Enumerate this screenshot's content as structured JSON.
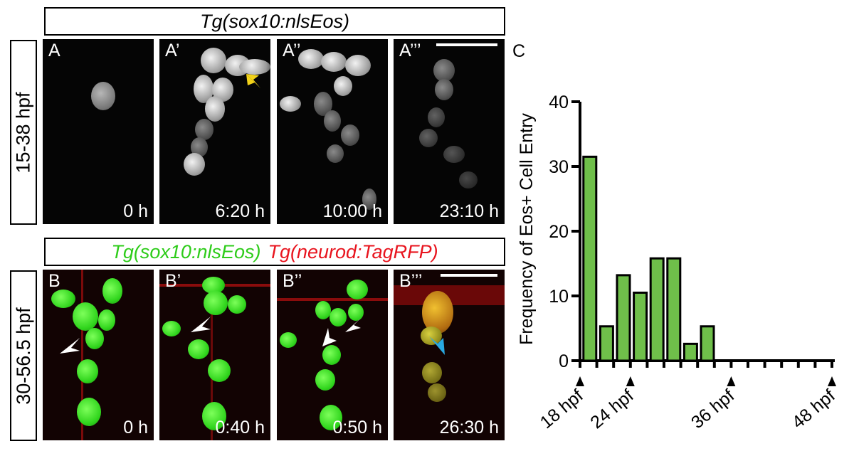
{
  "row1": {
    "title": "Tg(sox10:nlsEos)",
    "side_label": "15-38 hpf",
    "panels": [
      {
        "label": "A",
        "time": "0 h"
      },
      {
        "label": "A’",
        "time": "6:20 h"
      },
      {
        "label": "A’’",
        "time": "10:00 h"
      },
      {
        "label": "A’’’",
        "time": "23:10 h"
      }
    ]
  },
  "row2": {
    "title_green": "Tg(sox10:nlsEos)",
    "title_red": "Tg(neurod:TagRFP)",
    "side_label": "30-56.5 hpf",
    "panels": [
      {
        "label": "B",
        "time": "0 h"
      },
      {
        "label": "B’",
        "time": "0:40 h"
      },
      {
        "label": "B’’",
        "time": "0:50 h"
      },
      {
        "label": "B’’’",
        "time": "26:30 h"
      }
    ]
  },
  "colors": {
    "green_label": "#2ecc1a",
    "red_label": "#e8141e",
    "bar_fill": "#6fbf4a",
    "arrow_yellow": "#f2d21a",
    "arrow_blue": "#29a8e0",
    "arrow_white": "#ffffff"
  },
  "chart_data": {
    "panel_label": "C",
    "type": "bar",
    "ylabel": "Frequency of Eos+ Cell Entry",
    "ylim": [
      0,
      40
    ],
    "yticks": [
      0,
      10,
      20,
      30,
      40
    ],
    "x_unit_hours_per_bin": 2,
    "x_start_hpf": 18,
    "values": [
      31.5,
      5.3,
      13.2,
      10.5,
      15.8,
      15.8,
      2.6,
      5.3,
      0,
      0,
      0,
      0,
      0,
      0,
      0
    ],
    "tick_labels": [
      {
        "bin": 0,
        "text": "18 hpf"
      },
      {
        "bin": 3,
        "text": "24 hpf"
      },
      {
        "bin": 9,
        "text": "36 hpf"
      },
      {
        "bin": 15,
        "text": "48 hpf"
      }
    ],
    "marked_ticks": [
      0,
      3,
      9,
      15
    ]
  }
}
